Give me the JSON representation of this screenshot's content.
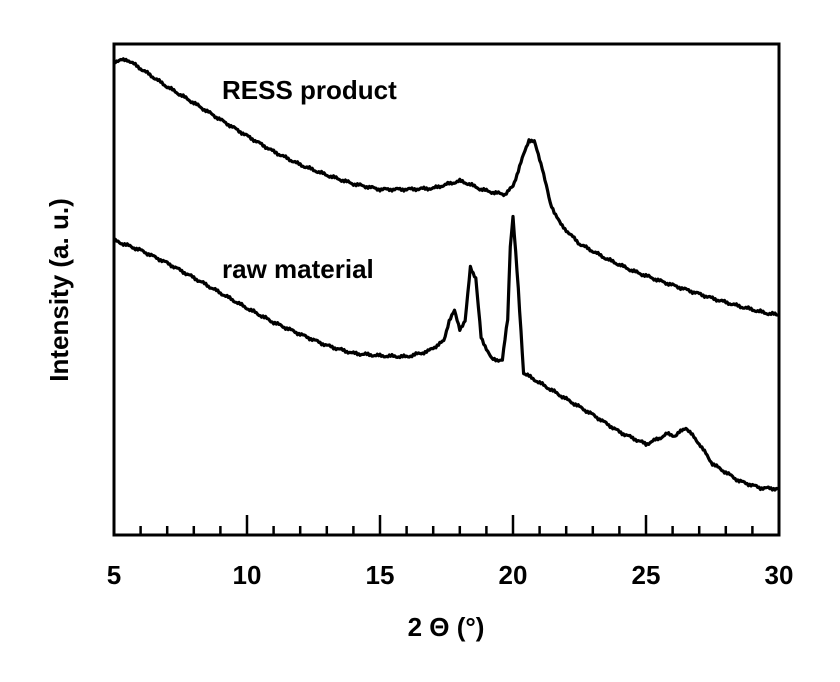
{
  "chart_data": {
    "type": "line",
    "xlabel": "2 Θ (°)",
    "ylabel": "Intensity (a. u.)",
    "xlim": [
      5,
      30
    ],
    "ylim": [
      0,
      100
    ],
    "x_ticks": [
      5,
      10,
      15,
      20,
      25,
      30
    ],
    "x_minor_step": 1,
    "y_tick_labels_shown": false,
    "grid": false,
    "legend": "none",
    "series": [
      {
        "name": "RESS product",
        "color": "#000000",
        "points": [
          [
            5.0,
            96.5
          ],
          [
            5.5,
            96.8
          ],
          [
            6.0,
            95.0
          ],
          [
            7.0,
            91.3
          ],
          [
            8.0,
            88.0
          ],
          [
            9.0,
            84.6
          ],
          [
            10.0,
            81.3
          ],
          [
            11.0,
            78.1
          ],
          [
            12.0,
            75.4
          ],
          [
            13.0,
            73.3
          ],
          [
            14.0,
            71.5
          ],
          [
            15.0,
            70.4
          ],
          [
            16.0,
            70.4
          ],
          [
            17.0,
            70.6
          ],
          [
            17.5,
            71.4
          ],
          [
            18.0,
            72.1
          ],
          [
            18.3,
            71.6
          ],
          [
            18.8,
            70.4
          ],
          [
            19.3,
            69.7
          ],
          [
            19.7,
            69.4
          ],
          [
            20.0,
            71.0
          ],
          [
            20.3,
            75.9
          ],
          [
            20.6,
            80.5
          ],
          [
            20.8,
            80.1
          ],
          [
            21.1,
            74.8
          ],
          [
            21.4,
            67.5
          ],
          [
            21.8,
            63.2
          ],
          [
            22.5,
            59.3
          ],
          [
            23.5,
            56.3
          ],
          [
            24.5,
            53.8
          ],
          [
            25.5,
            51.8
          ],
          [
            26.5,
            50.0
          ],
          [
            27.5,
            48.2
          ],
          [
            28.5,
            46.6
          ],
          [
            29.5,
            45.2
          ],
          [
            30.0,
            44.8
          ]
        ]
      },
      {
        "name": "raw material",
        "color": "#000000",
        "points": [
          [
            5.0,
            60.0
          ],
          [
            6.0,
            58.0
          ],
          [
            7.0,
            55.4
          ],
          [
            8.0,
            52.4
          ],
          [
            9.0,
            49.3
          ],
          [
            10.0,
            46.2
          ],
          [
            11.0,
            43.3
          ],
          [
            12.0,
            40.9
          ],
          [
            13.0,
            38.6
          ],
          [
            14.0,
            37.0
          ],
          [
            15.0,
            36.5
          ],
          [
            16.0,
            36.3
          ],
          [
            16.8,
            37.4
          ],
          [
            17.4,
            39.5
          ],
          [
            17.6,
            43.7
          ],
          [
            17.8,
            45.6
          ],
          [
            18.0,
            42.0
          ],
          [
            18.2,
            43.5
          ],
          [
            18.4,
            54.6
          ],
          [
            18.6,
            52.3
          ],
          [
            18.8,
            40.2
          ],
          [
            19.2,
            35.8
          ],
          [
            19.6,
            35.6
          ],
          [
            19.8,
            44.0
          ],
          [
            19.9,
            59.0
          ],
          [
            20.0,
            64.9
          ],
          [
            20.2,
            50.0
          ],
          [
            20.4,
            33.0
          ],
          [
            21.0,
            31.0
          ],
          [
            22.0,
            27.7
          ],
          [
            23.0,
            24.5
          ],
          [
            24.0,
            21.0
          ],
          [
            25.0,
            18.5
          ],
          [
            25.5,
            19.7
          ],
          [
            25.8,
            20.6
          ],
          [
            26.1,
            20.2
          ],
          [
            26.5,
            21.9
          ],
          [
            27.0,
            18.6
          ],
          [
            27.5,
            14.5
          ],
          [
            28.5,
            11.0
          ],
          [
            29.3,
            9.6
          ],
          [
            30.0,
            9.4
          ]
        ]
      }
    ]
  }
}
